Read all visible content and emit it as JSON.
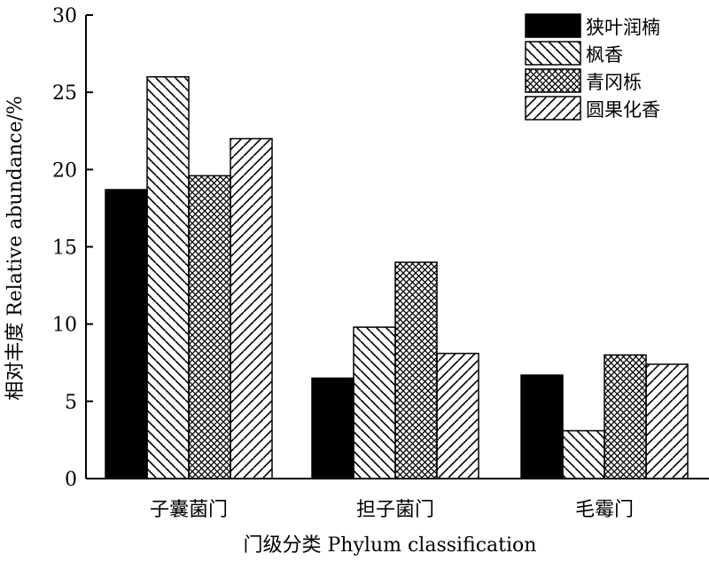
{
  "chart_data": {
    "type": "bar",
    "xlabel": "门级分类 Phylum classification",
    "ylabel": "相对丰度 Relative abundance/%",
    "categories": [
      "子囊菌门",
      "担子菌门",
      "毛霉门"
    ],
    "series": [
      {
        "name": "狭叶润楠",
        "values": [
          18.7,
          6.5,
          6.7
        ],
        "pattern": "solid",
        "color": "#000000"
      },
      {
        "name": "枫香",
        "values": [
          26.0,
          9.8,
          3.1
        ],
        "pattern": "back-diagonal",
        "color": "#000000"
      },
      {
        "name": "青冈栎",
        "values": [
          19.6,
          14.0,
          8.0
        ],
        "pattern": "crosshatch",
        "color": "#000000"
      },
      {
        "name": "圆果化香",
        "values": [
          22.0,
          8.1,
          7.4
        ],
        "pattern": "forward-diagonal",
        "color": "#000000"
      }
    ],
    "ylim": [
      0,
      30
    ],
    "yticks": [
      "0",
      "5",
      "10",
      "15",
      "20",
      "25",
      "30"
    ],
    "grid": false,
    "legend_position": "top-right"
  }
}
